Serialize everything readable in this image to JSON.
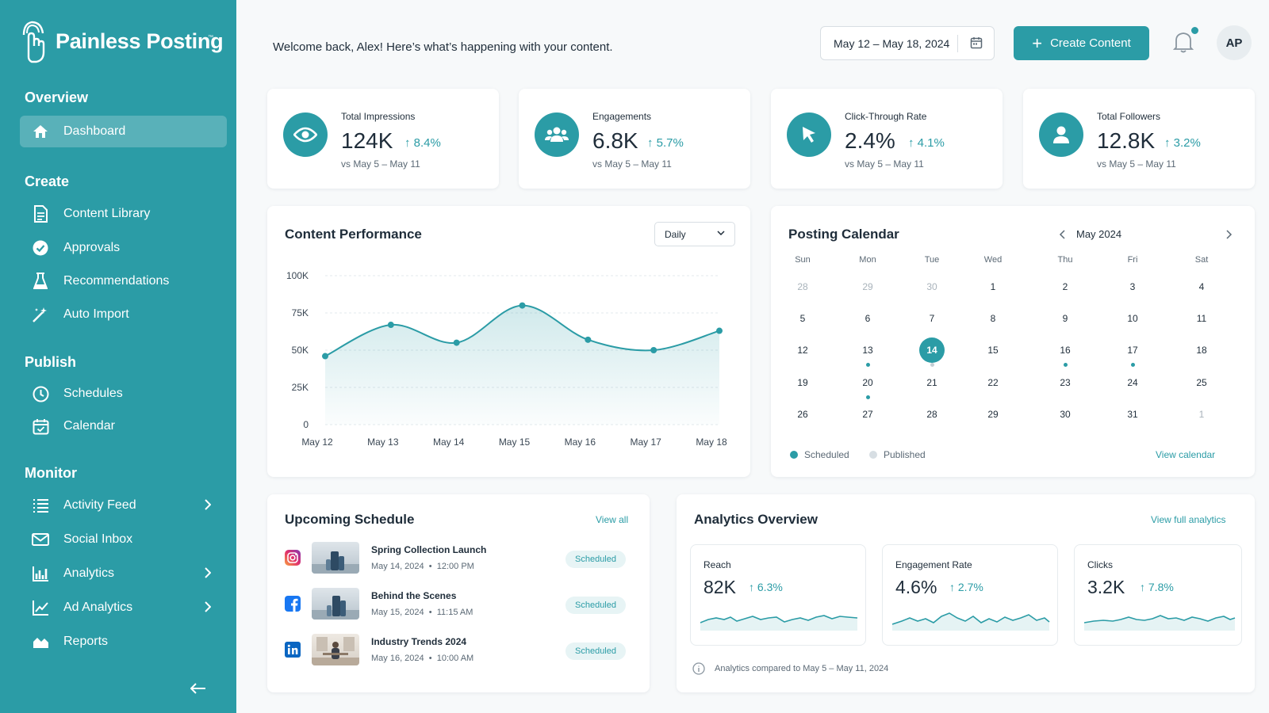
{
  "brand": {
    "name": "Painless Posting",
    "tm": "™",
    "accent": "#2b9ca6"
  },
  "sidebar": {
    "sections": [
      {
        "title": "Overview",
        "items": [
          {
            "label": "Dashboard",
            "icon": "home-icon",
            "active": true
          }
        ]
      },
      {
        "title": "Create",
        "items": [
          {
            "label": "Content Library",
            "icon": "document-icon"
          },
          {
            "label": "Approvals",
            "icon": "check-circle-icon"
          },
          {
            "label": "Recommendations",
            "icon": "flask-icon"
          },
          {
            "label": "Auto Import",
            "icon": "magic-wand-icon"
          }
        ]
      },
      {
        "title": "Publish",
        "items": [
          {
            "label": "Schedules",
            "icon": "clock-icon"
          },
          {
            "label": "Calendar",
            "icon": "calendar-check-icon"
          }
        ]
      },
      {
        "title": "Monitor",
        "items": [
          {
            "label": "Activity Feed",
            "icon": "list-icon",
            "chevron": true
          },
          {
            "label": "Social Inbox",
            "icon": "envelope-icon"
          },
          {
            "label": "Analytics",
            "icon": "bar-chart-icon",
            "chevron": true
          },
          {
            "label": "Ad Analytics",
            "icon": "line-chart-icon",
            "chevron": true
          },
          {
            "label": "Reports",
            "icon": "area-chart-icon"
          }
        ]
      }
    ]
  },
  "header": {
    "welcome": "Welcome back, Alex! Here’s what’s happening with your content.",
    "date_range": "May 12 – May 18, 2024",
    "create_label": "Create Content",
    "avatar": "AP"
  },
  "kpis": [
    {
      "label": "Total Impressions",
      "value": "124K",
      "delta": "8.4%",
      "sub": "vs May 5 – May 11",
      "icon": "eye-icon"
    },
    {
      "label": "Engagements",
      "value": "6.8K",
      "delta": "5.7%",
      "sub": "vs May 5 – May 11",
      "icon": "users-icon"
    },
    {
      "label": "Click-Through Rate",
      "value": "2.4%",
      "delta": "4.1%",
      "sub": "vs May 5 – May 11",
      "icon": "cursor-icon"
    },
    {
      "label": "Total Followers",
      "value": "12.8K",
      "delta": "3.2%",
      "sub": "vs May 5 – May 11",
      "icon": "user-icon"
    }
  ],
  "performance": {
    "title": "Content Performance",
    "period": "Daily"
  },
  "chart_data": {
    "type": "area",
    "title": "Content Performance",
    "categories": [
      "May 12",
      "May 13",
      "May 14",
      "May 15",
      "May 16",
      "May 17",
      "May 18"
    ],
    "series": [
      {
        "values": [
          46000,
          67000,
          55000,
          80000,
          57000,
          50000,
          63000
        ]
      }
    ],
    "ylim": [
      0,
      100000
    ],
    "yticks": [
      "100K",
      "75K",
      "50K",
      "25K",
      "0"
    ],
    "grid": true
  },
  "calendar": {
    "title": "Posting Calendar",
    "month": "May 2024",
    "weekdays": [
      "Sun",
      "Mon",
      "Tue",
      "Wed",
      "Thu",
      "Fri",
      "Sat"
    ],
    "weeks": [
      [
        "28",
        "29",
        "30",
        "1",
        "2",
        "3",
        "4"
      ],
      [
        "5",
        "6",
        "7",
        "8",
        "9",
        "10",
        "11"
      ],
      [
        "12",
        "13",
        "14",
        "15",
        "16",
        "17",
        "18"
      ],
      [
        "19",
        "20",
        "21",
        "22",
        "23",
        "24",
        "25"
      ],
      [
        "26",
        "27",
        "28",
        "29",
        "30",
        "31",
        "1"
      ]
    ],
    "today": "14",
    "legend_scheduled": "Scheduled",
    "legend_published": "Published",
    "view_link": "View calendar"
  },
  "schedule": {
    "title": "Upcoming Schedule",
    "view_all": "View all",
    "items": [
      {
        "network": "instagram-icon",
        "title": "Spring Collection Launch",
        "date": "May 14, 2024",
        "time": "12:00 PM",
        "status": "Scheduled"
      },
      {
        "network": "facebook-icon",
        "title": "Behind the Scenes",
        "date": "May 15, 2024",
        "time": "11:15 AM",
        "status": "Scheduled"
      },
      {
        "network": "linkedin-icon",
        "title": "Industry Trends 2024",
        "date": "May 16, 2024",
        "time": "10:00 AM",
        "status": "Scheduled"
      }
    ]
  },
  "analytics": {
    "title": "Analytics Overview",
    "view_link": "View full analytics",
    "cards": [
      {
        "label": "Reach",
        "value": "82K",
        "delta": "6.3%"
      },
      {
        "label": "Engagement Rate",
        "value": "4.6%",
        "delta": "2.7%"
      },
      {
        "label": "Clicks",
        "value": "3.2K",
        "delta": "7.8%"
      }
    ],
    "footnote": "Analytics compared to May 5 – May 11, 2024"
  }
}
